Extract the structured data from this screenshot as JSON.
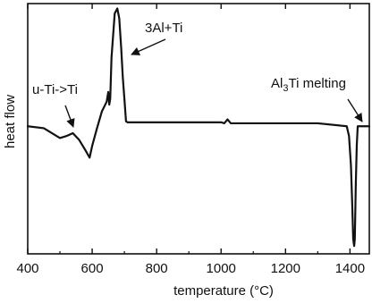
{
  "chart_data": {
    "type": "line",
    "title": "",
    "xlabel": "temperature (°C)",
    "ylabel": "heat flow",
    "xlim": [
      400,
      1460
    ],
    "ylim": [
      -1.3,
      1.25
    ],
    "xticks": [
      400,
      600,
      800,
      1000,
      1200,
      1400
    ],
    "grid": false,
    "legend": "none",
    "series": [
      {
        "x": [
          400,
          450,
          480,
          500,
          520,
          540,
          560,
          580,
          592,
          600,
          615,
          630,
          645,
          650,
          653,
          656,
          660,
          670,
          678,
          684,
          690,
          695,
          700,
          705,
          710,
          800,
          900,
          1000,
          1010,
          1020,
          1030,
          1100,
          1200,
          1300,
          1390,
          1397,
          1403,
          1407,
          1410,
          1413,
          1415,
          1418,
          1421,
          1424,
          1430,
          1460
        ],
        "y": [
          0.0,
          -0.02,
          -0.08,
          -0.12,
          -0.1,
          -0.07,
          -0.14,
          -0.25,
          -0.32,
          -0.2,
          -0.02,
          0.15,
          0.25,
          0.35,
          0.22,
          0.28,
          0.7,
          1.15,
          1.2,
          1.1,
          0.8,
          0.5,
          0.28,
          0.05,
          0.04,
          0.04,
          0.04,
          0.04,
          0.03,
          0.07,
          0.03,
          0.03,
          0.03,
          0.03,
          0.0,
          -0.1,
          -0.4,
          -0.8,
          -1.15,
          -1.22,
          -1.15,
          -0.6,
          -0.2,
          0.0,
          0.0,
          0.0
        ]
      }
    ],
    "annotations": [
      {
        "text_main": "u-Ti->Ti",
        "text_sub": "",
        "text_tail": "",
        "target": [
          530,
          -0.02
        ]
      },
      {
        "text_main": "3Al+Ti",
        "text_sub": "",
        "text_tail": "",
        "target": [
          695,
          0.55
        ]
      },
      {
        "text_main": "Al",
        "text_sub": "3",
        "text_tail": "Ti melting",
        "target": [
          1408,
          0.04
        ]
      }
    ]
  }
}
